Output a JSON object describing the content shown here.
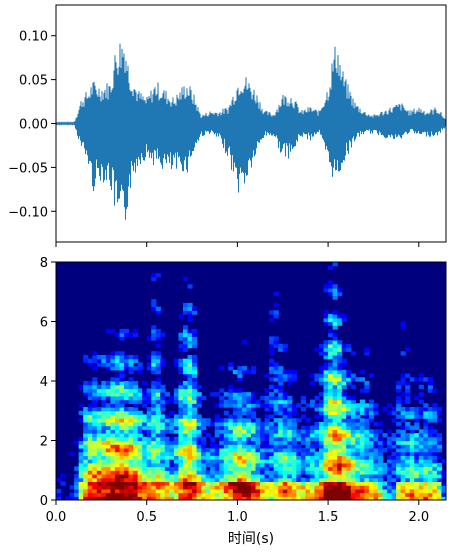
{
  "chart_data": [
    {
      "type": "line",
      "title": "",
      "xlabel": "",
      "ylabel": "",
      "xlim": [
        0,
        2.15
      ],
      "ylim": [
        -0.135,
        0.135
      ],
      "yticks": [
        0.1,
        0.05,
        0.0,
        -0.05,
        -0.1
      ],
      "ytick_labels": [
        "0.10",
        "0.05",
        "0.00",
        "−0.05",
        "−0.10"
      ],
      "xticks": [
        0.0,
        0.5,
        1.0,
        1.5,
        2.0
      ],
      "xtick_labels": [
        "",
        "",
        "",
        "",
        ""
      ],
      "series_color": "#1f77b4",
      "envelope": {
        "x": [
          0.0,
          0.1,
          0.14,
          0.18,
          0.2,
          0.25,
          0.3,
          0.33,
          0.35,
          0.38,
          0.4,
          0.45,
          0.5,
          0.55,
          0.6,
          0.65,
          0.7,
          0.72,
          0.75,
          0.8,
          0.85,
          0.9,
          0.95,
          1.0,
          1.02,
          1.05,
          1.1,
          1.15,
          1.2,
          1.25,
          1.3,
          1.35,
          1.4,
          1.45,
          1.5,
          1.53,
          1.55,
          1.57,
          1.6,
          1.65,
          1.7,
          1.75,
          1.8,
          1.85,
          1.9,
          1.95,
          2.0,
          2.05,
          2.1,
          2.15
        ],
        "upper": [
          0.001,
          0.001,
          0.03,
          0.04,
          0.05,
          0.045,
          0.05,
          0.09,
          0.1,
          0.105,
          0.07,
          0.04,
          0.03,
          0.05,
          0.04,
          0.03,
          0.045,
          0.05,
          0.04,
          0.01,
          0.015,
          0.015,
          0.02,
          0.05,
          0.06,
          0.055,
          0.04,
          0.015,
          0.012,
          0.035,
          0.035,
          0.015,
          0.02,
          0.015,
          0.045,
          0.085,
          0.1,
          0.07,
          0.05,
          0.025,
          0.015,
          0.01,
          0.015,
          0.02,
          0.025,
          0.015,
          0.02,
          0.015,
          0.02,
          0.005
        ],
        "lower": [
          -0.001,
          -0.001,
          -0.03,
          -0.05,
          -0.08,
          -0.065,
          -0.075,
          -0.11,
          -0.125,
          -0.13,
          -0.085,
          -0.05,
          -0.04,
          -0.05,
          -0.055,
          -0.06,
          -0.055,
          -0.06,
          -0.04,
          -0.015,
          -0.012,
          -0.02,
          -0.04,
          -0.08,
          -0.082,
          -0.07,
          -0.04,
          -0.015,
          -0.015,
          -0.04,
          -0.04,
          -0.015,
          -0.02,
          -0.01,
          -0.05,
          -0.065,
          -0.07,
          -0.055,
          -0.04,
          -0.02,
          -0.012,
          -0.012,
          -0.015,
          -0.02,
          -0.02,
          -0.01,
          -0.015,
          -0.015,
          -0.015,
          -0.005
        ]
      }
    },
    {
      "type": "heatmap",
      "title": "",
      "xlabel": "时间(s)",
      "ylabel": "",
      "xlim": [
        0,
        2.15
      ],
      "ylim": [
        0,
        8
      ],
      "xticks": [
        0.0,
        0.5,
        1.0,
        1.5,
        2.0
      ],
      "xtick_labels": [
        "0.0",
        "0.5",
        "1.0",
        "1.5",
        "2.0"
      ],
      "yticks": [
        0,
        2,
        4,
        6,
        8
      ],
      "ytick_labels": [
        "0",
        "2",
        "4",
        "6",
        "8"
      ],
      "colormap": "jet",
      "colormap_stops": [
        "#00007f",
        "#0000ff",
        "#007fff",
        "#00ffff",
        "#7fff7f",
        "#ffff00",
        "#ff7f00",
        "#ff0000",
        "#7f0000"
      ],
      "time_energy": {
        "x": [
          0.0,
          0.1,
          0.15,
          0.2,
          0.25,
          0.3,
          0.35,
          0.4,
          0.45,
          0.5,
          0.55,
          0.6,
          0.65,
          0.7,
          0.75,
          0.8,
          0.85,
          0.9,
          0.95,
          1.0,
          1.05,
          1.1,
          1.15,
          1.2,
          1.25,
          1.3,
          1.35,
          1.4,
          1.45,
          1.5,
          1.55,
          1.6,
          1.65,
          1.7,
          1.75,
          1.8,
          1.85,
          1.9,
          1.95,
          2.0,
          2.05,
          2.1,
          2.15
        ],
        "energy": [
          0.05,
          0.05,
          0.55,
          0.75,
          0.8,
          0.85,
          0.95,
          0.9,
          0.75,
          0.55,
          0.6,
          0.5,
          0.4,
          0.7,
          0.75,
          0.45,
          0.35,
          0.4,
          0.55,
          0.8,
          0.75,
          0.6,
          0.35,
          0.3,
          0.55,
          0.5,
          0.35,
          0.4,
          0.45,
          0.75,
          0.9,
          0.75,
          0.6,
          0.55,
          0.4,
          0.3,
          0.2,
          0.4,
          0.45,
          0.5,
          0.45,
          0.4,
          0.1
        ],
        "hf_reach": [
          0.1,
          0.1,
          0.5,
          0.55,
          0.55,
          0.6,
          0.65,
          0.6,
          0.55,
          0.45,
          0.95,
          0.45,
          0.4,
          0.85,
          0.9,
          0.4,
          0.35,
          0.45,
          0.5,
          0.55,
          0.5,
          0.45,
          0.35,
          0.95,
          0.6,
          0.5,
          0.4,
          0.45,
          0.5,
          0.95,
          0.9,
          0.6,
          0.5,
          0.55,
          0.45,
          0.35,
          0.3,
          0.6,
          0.55,
          0.5,
          0.5,
          0.45,
          0.1
        ]
      }
    }
  ]
}
